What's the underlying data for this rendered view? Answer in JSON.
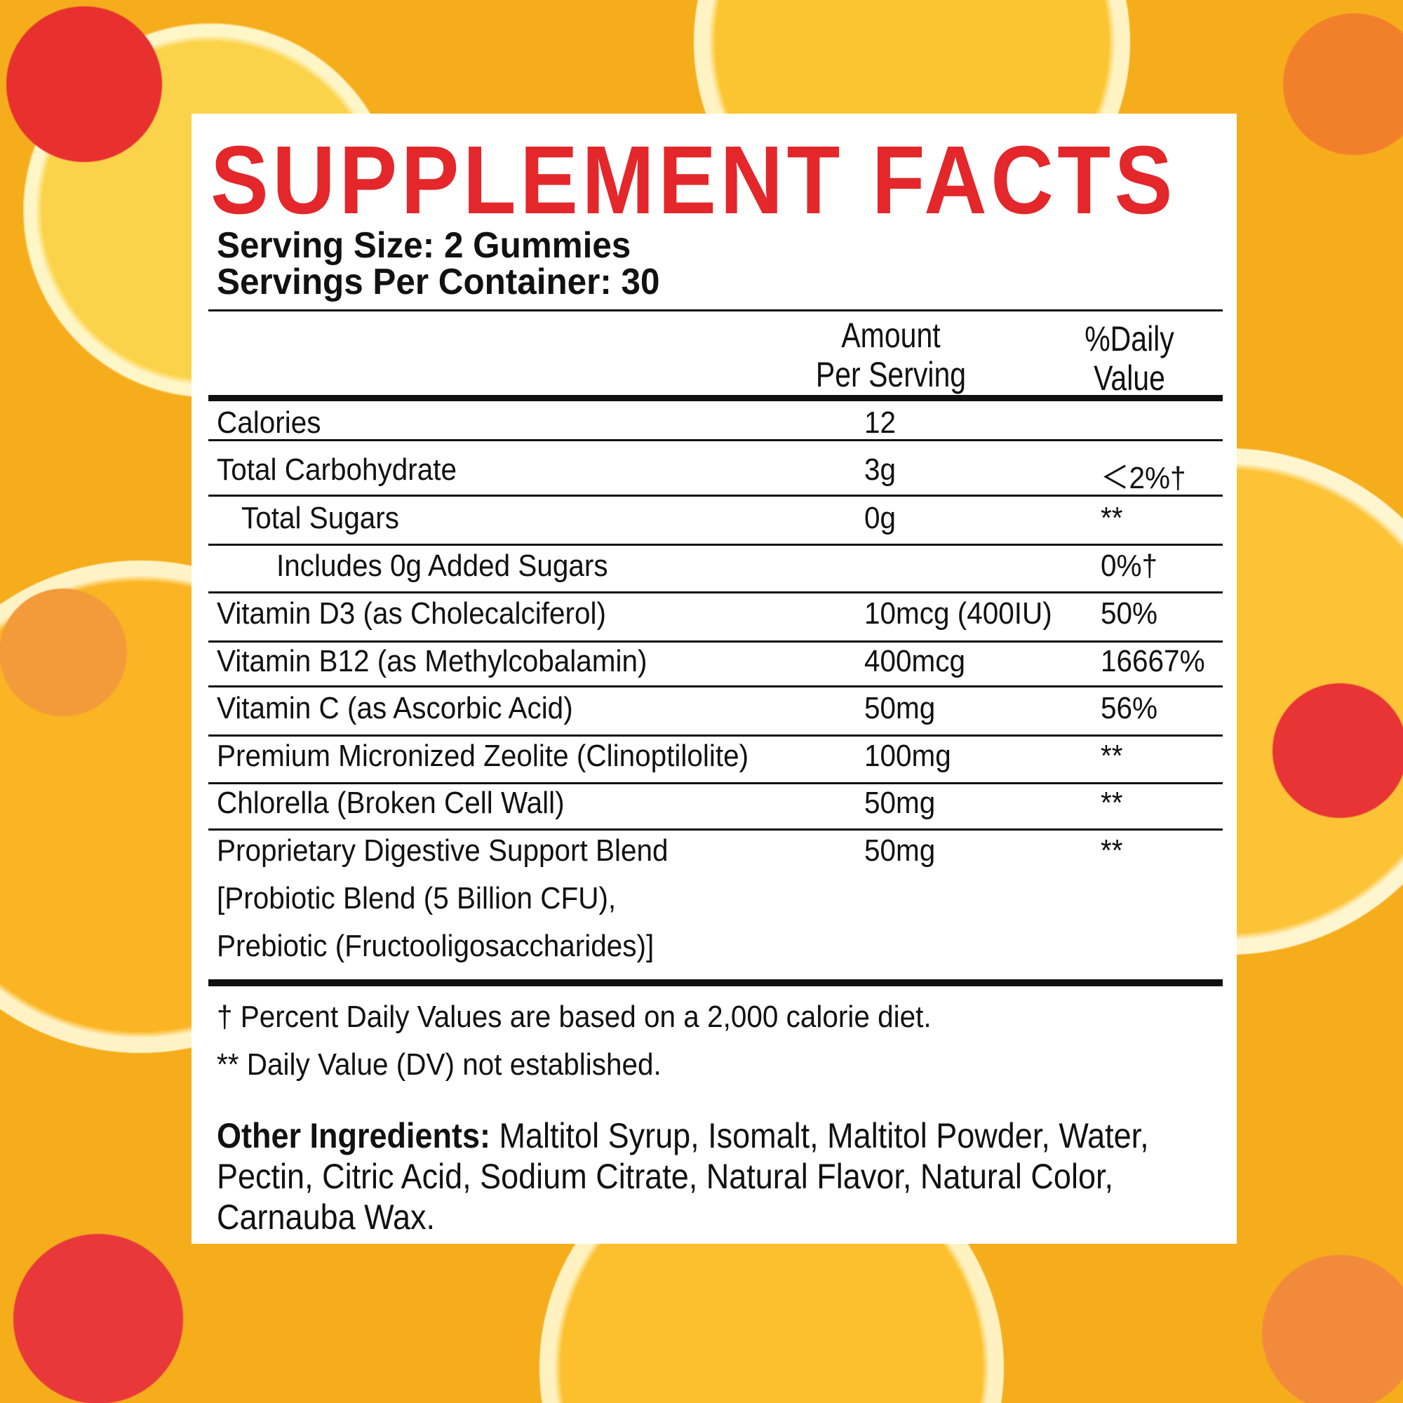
{
  "title": "SUPPLEMENT FACTS",
  "serving_size": "Serving Size: 2 Gummies",
  "servings_per_container": "Servings Per Container: 30",
  "header": {
    "amount_line1": "Amount",
    "amount_line2": "Per Serving",
    "dv_line1": "%Daily",
    "dv_line2": "Value"
  },
  "rows": [
    {
      "label": "Calories",
      "amount": "12",
      "dv": ""
    },
    {
      "label": "Total Carbohydrate",
      "amount": "3g",
      "dv": "＜2%†"
    },
    {
      "label": "Total Sugars",
      "amount": "0g",
      "dv": "**"
    },
    {
      "label": "Includes 0g Added Sugars",
      "amount": "",
      "dv": "0%†"
    },
    {
      "label": "Vitamin D3 (as Cholecalciferol)",
      "amount": "10mcg (400IU)",
      "dv": "50%"
    },
    {
      "label": "Vitamin B12 (as Methylcobalamin)",
      "amount": "400mcg",
      "dv": "16667%"
    },
    {
      "label": "Vitamin C (as Ascorbic Acid)",
      "amount": "50mg",
      "dv": "56%"
    },
    {
      "label": "Premium Micronized Zeolite (Clinoptilolite)",
      "amount": "100mg",
      "dv": "**"
    },
    {
      "label": "Chlorella (Broken Cell Wall)",
      "amount": "50mg",
      "dv": "**"
    },
    {
      "label": "Proprietary Digestive Support Blend",
      "label2": "[Probiotic Blend (5 Billion CFU),",
      "label3": "Prebiotic (Fructooligosaccharides)]",
      "amount": "50mg",
      "dv": "**"
    }
  ],
  "footnotes": [
    "† Percent Daily Values are based on a 2,000 calorie diet.",
    "** Daily Value (DV) not established."
  ],
  "other_ingredients": {
    "label": "Other Ingredients:",
    "text": " Maltitol Syrup, Isomalt, Maltitol Powder, Water, Pectin, Citric Acid, Sodium Citrate, Natural Flavor, Natural Color, Carnauba Wax."
  },
  "colors": {
    "title": "#e3272a",
    "panel": "#ffffff",
    "background": "#f6ad1c"
  }
}
